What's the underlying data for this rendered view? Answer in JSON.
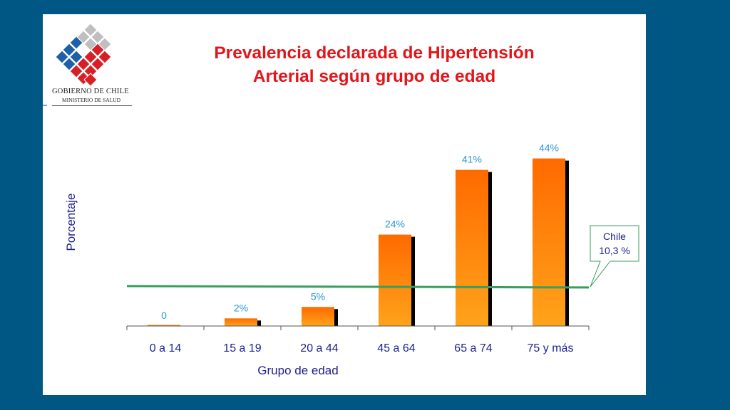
{
  "logo": {
    "line1": "GOBIERNO DE CHILE",
    "line2": "MINISTERIO DE SALUD"
  },
  "title_line1": "Prevalencia declarada de Hipertensión",
  "title_line2": "Arterial según grupo de edad",
  "colors": {
    "background": "#005784",
    "title": "#e3151a",
    "axis_text": "#1c1f8c",
    "data_label": "#2f97d5",
    "bar_top": "#ff6a00",
    "bar_bottom": "#ffa31a",
    "reference_line": "#3a9e5f"
  },
  "chart_data": {
    "type": "bar",
    "categories": [
      "0 a 14",
      "15 a 19",
      "20 a 44",
      "45 a 64",
      "65 a 74",
      "75 y más"
    ],
    "values": [
      0,
      2,
      5,
      24,
      41,
      44
    ],
    "data_labels": [
      "0",
      "2%",
      "5%",
      "24%",
      "41%",
      "44%"
    ],
    "xlabel": "Grupo de edad",
    "ylabel": "Porcentaje",
    "ylim": [
      0,
      50
    ],
    "grid": false,
    "reference_line": {
      "value": 10.3,
      "label_line1": "Chile",
      "label_line2": "10,3 %"
    }
  }
}
